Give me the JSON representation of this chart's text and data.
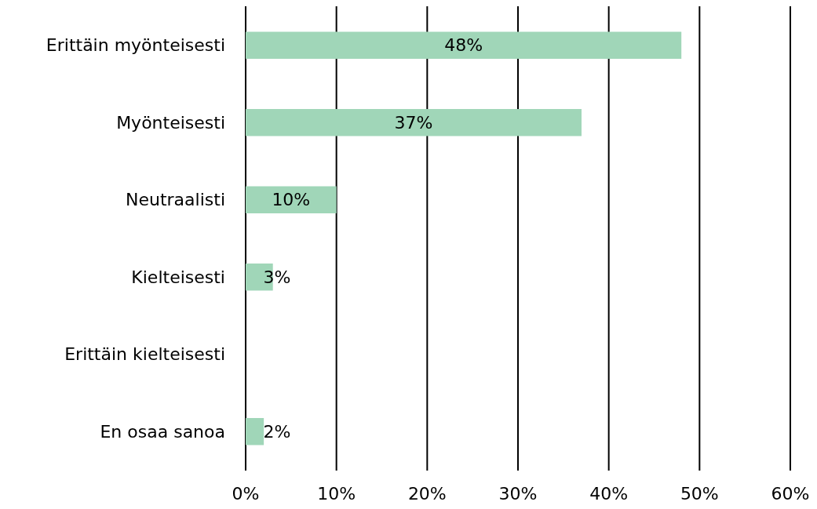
{
  "chart_data": {
    "type": "bar",
    "orientation": "horizontal",
    "categories": [
      "Erittäin myönteisesti",
      "Myönteisesti",
      "Neutraalisti",
      "Kielteisesti",
      "Erittäin kielteisesti",
      "En osaa sanoa"
    ],
    "values": [
      48,
      37,
      10,
      3,
      null,
      2
    ],
    "value_labels": [
      "48%",
      "37%",
      "10%",
      "3%",
      null,
      "2%"
    ],
    "color": "#a0d6b8",
    "xlim": [
      0,
      60
    ],
    "xticks": [
      {
        "value": 0,
        "label": "0%"
      },
      {
        "value": 10,
        "label": "10%"
      },
      {
        "value": 20,
        "label": "20%"
      },
      {
        "value": 30,
        "label": "30%"
      },
      {
        "value": 40,
        "label": "40%"
      },
      {
        "value": 50,
        "label": "50%"
      },
      {
        "value": 60,
        "label": "60%"
      }
    ],
    "grid": "x"
  }
}
